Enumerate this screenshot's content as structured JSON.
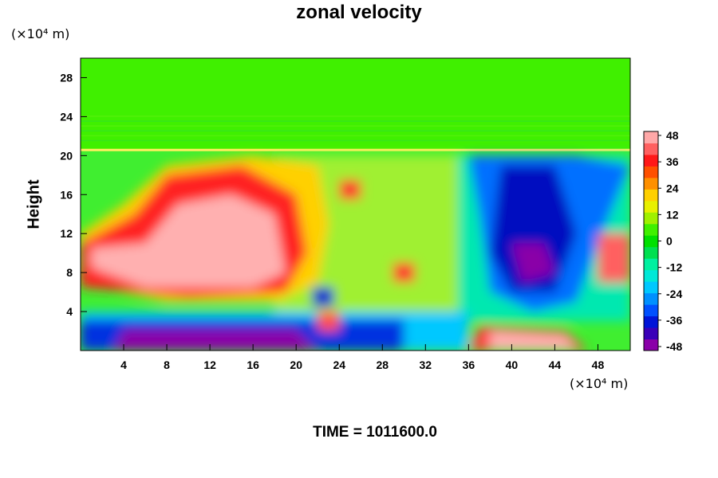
{
  "chart_data": {
    "type": "heatmap",
    "title": "zonal velocity",
    "ylabel": "Height",
    "x_unit": "(×10⁴ m)",
    "y_unit": "(×10⁴ m)",
    "footer": "TIME = 1011600.0",
    "x_ticks": [
      4,
      8,
      12,
      16,
      20,
      24,
      28,
      32,
      36,
      40,
      44,
      48
    ],
    "y_ticks": [
      4,
      8,
      12,
      16,
      20,
      24,
      28
    ],
    "xlim": [
      0,
      51
    ],
    "ylim": [
      0,
      30
    ],
    "colorbar": {
      "ticks": [
        48,
        36,
        24,
        12,
        0,
        -12,
        -24,
        -36,
        -48
      ],
      "range": [
        -48,
        48
      ],
      "colors": [
        "#8a00a8",
        "#3a00b8",
        "#0014d8",
        "#0050ff",
        "#0090ff",
        "#00c8ff",
        "#00e8d8",
        "#00f0a0",
        "#00e050",
        "#00e000",
        "#40f000",
        "#a0f000",
        "#e8f000",
        "#ffd000",
        "#ff9000",
        "#ff5000",
        "#ff1818",
        "#ff6060",
        "#ffa8a8"
      ]
    },
    "features": [
      {
        "x": 11,
        "y": 9.5,
        "sign": "positive",
        "value": 48
      },
      {
        "x": 42,
        "y": 9,
        "sign": "negative",
        "value": -48
      },
      {
        "x": 11,
        "y": 1,
        "sign": "negative",
        "value": -48
      },
      {
        "x": 43,
        "y": 1,
        "sign": "positive",
        "value": 48
      },
      {
        "x": 25,
        "y": 16.5,
        "sign": "positive",
        "value": 36
      },
      {
        "x": 30,
        "y": 8,
        "sign": "positive",
        "value": 36
      },
      {
        "x": 23,
        "y": 3,
        "sign": "positive",
        "value": 36
      },
      {
        "x": 22.5,
        "y": 5.5,
        "sign": "negative",
        "value": -36
      },
      {
        "x": 51,
        "y": 9.5,
        "sign": "positive",
        "value": 36
      }
    ]
  }
}
